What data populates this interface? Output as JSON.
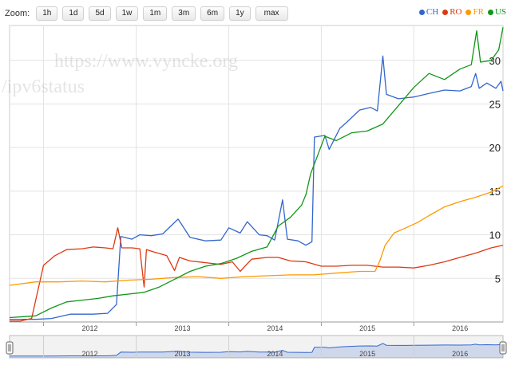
{
  "toolbar": {
    "zoom_label": "Zoom:",
    "buttons": [
      "1h",
      "1d",
      "5d",
      "1w",
      "1m",
      "3m",
      "6m",
      "1y",
      "max"
    ]
  },
  "watermark": {
    "line1": "https://www.vyncke.org",
    "line2": "/ipv6status"
  },
  "legend": [
    {
      "label": "CH",
      "color": "#3366cc"
    },
    {
      "label": "RO",
      "color": "#dc3912"
    },
    {
      "label": "FR",
      "color": "#ff9900"
    },
    {
      "label": "US",
      "color": "#109618"
    }
  ],
  "chart_data": {
    "type": "line",
    "x_range": [
      "2011-08-20",
      "2016-12-18"
    ],
    "y_range": [
      0,
      34
    ],
    "y_ticks": [
      "5",
      "10",
      "15",
      "20",
      "25",
      "30"
    ],
    "x_ticks": [
      "2012",
      "2013",
      "2014",
      "2015",
      "2016"
    ],
    "grid": true,
    "legend_position": "top-right",
    "series": [
      {
        "name": "CH",
        "color": "#3366cc",
        "points": [
          [
            "2011-08-20",
            0.3
          ],
          [
            "2011-12-01",
            0.3
          ],
          [
            "2012-02-01",
            0.4
          ],
          [
            "2012-04-15",
            0.9
          ],
          [
            "2012-07-15",
            0.9
          ],
          [
            "2012-09-10",
            1.0
          ],
          [
            "2012-10-15",
            2.0
          ],
          [
            "2012-11-01",
            9.8
          ],
          [
            "2012-12-15",
            9.5
          ],
          [
            "2013-01-15",
            10.0
          ],
          [
            "2013-03-01",
            9.9
          ],
          [
            "2013-04-15",
            10.1
          ],
          [
            "2013-06-15",
            11.8
          ],
          [
            "2013-08-01",
            9.7
          ],
          [
            "2013-10-01",
            9.3
          ],
          [
            "2013-12-01",
            9.4
          ],
          [
            "2014-01-01",
            10.8
          ],
          [
            "2014-02-15",
            10.2
          ],
          [
            "2014-03-15",
            11.5
          ],
          [
            "2014-05-01",
            10.0
          ],
          [
            "2014-06-01",
            9.9
          ],
          [
            "2014-07-01",
            9.4
          ],
          [
            "2014-08-01",
            14.0
          ],
          [
            "2014-08-20",
            9.5
          ],
          [
            "2014-10-01",
            9.3
          ],
          [
            "2014-11-01",
            8.8
          ],
          [
            "2014-11-25",
            9.2
          ],
          [
            "2014-12-05",
            21.2
          ],
          [
            "2015-01-15",
            21.4
          ],
          [
            "2015-02-01",
            19.8
          ],
          [
            "2015-03-15",
            22.2
          ],
          [
            "2015-04-15",
            23.0
          ],
          [
            "2015-06-01",
            24.3
          ],
          [
            "2015-07-15",
            24.6
          ],
          [
            "2015-08-10",
            24.2
          ],
          [
            "2015-09-01",
            30.5
          ],
          [
            "2015-09-15",
            26.1
          ],
          [
            "2015-11-01",
            25.6
          ],
          [
            "2016-01-01",
            25.8
          ],
          [
            "2016-03-01",
            26.2
          ],
          [
            "2016-05-01",
            26.6
          ],
          [
            "2016-07-01",
            26.5
          ],
          [
            "2016-08-15",
            27.0
          ],
          [
            "2016-09-01",
            28.5
          ],
          [
            "2016-09-15",
            26.8
          ],
          [
            "2016-10-15",
            27.4
          ],
          [
            "2016-11-20",
            26.8
          ],
          [
            "2016-12-10",
            27.6
          ],
          [
            "2016-12-18",
            26.5
          ]
        ]
      },
      {
        "name": "RO",
        "color": "#dc3912",
        "points": [
          [
            "2011-08-20",
            0.1
          ],
          [
            "2011-10-01",
            0.1
          ],
          [
            "2011-11-15",
            0.4
          ],
          [
            "2012-01-01",
            6.5
          ],
          [
            "2012-02-15",
            7.6
          ],
          [
            "2012-04-01",
            8.3
          ],
          [
            "2012-06-01",
            8.4
          ],
          [
            "2012-07-15",
            8.6
          ],
          [
            "2012-09-01",
            8.5
          ],
          [
            "2012-10-01",
            8.4
          ],
          [
            "2012-10-20",
            10.8
          ],
          [
            "2012-11-05",
            8.5
          ],
          [
            "2012-12-15",
            8.5
          ],
          [
            "2013-01-15",
            8.4
          ],
          [
            "2013-02-01",
            4.0
          ],
          [
            "2013-02-10",
            8.3
          ],
          [
            "2013-03-15",
            8.0
          ],
          [
            "2013-05-01",
            7.6
          ],
          [
            "2013-06-01",
            5.9
          ],
          [
            "2013-06-20",
            7.4
          ],
          [
            "2013-08-01",
            7.0
          ],
          [
            "2013-10-01",
            6.8
          ],
          [
            "2013-12-01",
            6.6
          ],
          [
            "2014-01-15",
            6.9
          ],
          [
            "2014-02-15",
            5.8
          ],
          [
            "2014-04-01",
            7.2
          ],
          [
            "2014-06-01",
            7.4
          ],
          [
            "2014-07-15",
            7.4
          ],
          [
            "2014-09-01",
            7.0
          ],
          [
            "2014-11-01",
            6.9
          ],
          [
            "2015-01-01",
            6.4
          ],
          [
            "2015-03-01",
            6.4
          ],
          [
            "2015-05-01",
            6.5
          ],
          [
            "2015-07-01",
            6.5
          ],
          [
            "2015-09-01",
            6.3
          ],
          [
            "2015-11-01",
            6.3
          ],
          [
            "2016-01-01",
            6.2
          ],
          [
            "2016-03-01",
            6.5
          ],
          [
            "2016-05-01",
            6.9
          ],
          [
            "2016-07-01",
            7.4
          ],
          [
            "2016-09-01",
            7.9
          ],
          [
            "2016-11-01",
            8.5
          ],
          [
            "2016-12-18",
            8.8
          ]
        ]
      },
      {
        "name": "FR",
        "color": "#ff9900",
        "points": [
          [
            "2011-08-20",
            4.2
          ],
          [
            "2011-12-01",
            4.6
          ],
          [
            "2012-03-01",
            4.6
          ],
          [
            "2012-06-01",
            4.7
          ],
          [
            "2012-09-01",
            4.6
          ],
          [
            "2012-12-01",
            4.8
          ],
          [
            "2013-03-01",
            4.9
          ],
          [
            "2013-06-01",
            5.1
          ],
          [
            "2013-09-01",
            5.2
          ],
          [
            "2013-12-01",
            5.0
          ],
          [
            "2014-03-01",
            5.2
          ],
          [
            "2014-06-01",
            5.3
          ],
          [
            "2014-09-01",
            5.4
          ],
          [
            "2014-12-01",
            5.4
          ],
          [
            "2015-03-01",
            5.6
          ],
          [
            "2015-06-01",
            5.8
          ],
          [
            "2015-08-01",
            5.8
          ],
          [
            "2015-08-20",
            7.0
          ],
          [
            "2015-09-10",
            8.8
          ],
          [
            "2015-10-15",
            10.2
          ],
          [
            "2015-12-01",
            10.8
          ],
          [
            "2016-01-15",
            11.4
          ],
          [
            "2016-03-01",
            12.2
          ],
          [
            "2016-05-01",
            13.2
          ],
          [
            "2016-07-01",
            13.8
          ],
          [
            "2016-09-01",
            14.3
          ],
          [
            "2016-11-01",
            14.9
          ],
          [
            "2016-12-18",
            15.6
          ]
        ]
      },
      {
        "name": "US",
        "color": "#109618",
        "points": [
          [
            "2011-08-20",
            0.5
          ],
          [
            "2011-12-01",
            0.7
          ],
          [
            "2012-02-01",
            1.6
          ],
          [
            "2012-04-01",
            2.3
          ],
          [
            "2012-06-01",
            2.5
          ],
          [
            "2012-08-01",
            2.7
          ],
          [
            "2012-10-01",
            3.0
          ],
          [
            "2012-12-01",
            3.2
          ],
          [
            "2013-02-01",
            3.4
          ],
          [
            "2013-04-01",
            4.0
          ],
          [
            "2013-06-01",
            4.9
          ],
          [
            "2013-08-01",
            5.8
          ],
          [
            "2013-10-01",
            6.4
          ],
          [
            "2013-12-01",
            6.7
          ],
          [
            "2014-02-01",
            7.3
          ],
          [
            "2014-04-01",
            8.1
          ],
          [
            "2014-06-01",
            8.6
          ],
          [
            "2014-07-15",
            11.0
          ],
          [
            "2014-09-01",
            12.0
          ],
          [
            "2014-10-15",
            13.4
          ],
          [
            "2014-11-01",
            14.6
          ],
          [
            "2014-11-20",
            17.0
          ],
          [
            "2014-12-15",
            18.9
          ],
          [
            "2015-01-15",
            21.3
          ],
          [
            "2015-03-01",
            20.8
          ],
          [
            "2015-05-01",
            21.7
          ],
          [
            "2015-07-01",
            21.9
          ],
          [
            "2015-09-01",
            22.7
          ],
          [
            "2015-11-01",
            24.8
          ],
          [
            "2016-01-01",
            26.9
          ],
          [
            "2016-03-01",
            28.5
          ],
          [
            "2016-05-01",
            27.8
          ],
          [
            "2016-07-01",
            29.0
          ],
          [
            "2016-08-15",
            29.5
          ],
          [
            "2016-09-05",
            33.4
          ],
          [
            "2016-09-20",
            29.8
          ],
          [
            "2016-11-01",
            30.0
          ],
          [
            "2016-12-01",
            31.2
          ],
          [
            "2016-12-18",
            33.8
          ]
        ]
      }
    ],
    "navigator": {
      "x_ticks": [
        "2012",
        "2013",
        "2014",
        "2015",
        "2016"
      ],
      "series_name": "CH"
    }
  }
}
